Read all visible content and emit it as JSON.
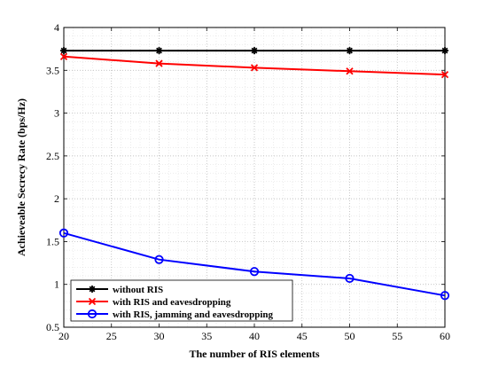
{
  "chart_data": {
    "type": "line",
    "xlabel": "The number of RIS elements",
    "ylabel": "Achieveable Secrecy Rate (bps/Hz)",
    "xlim": [
      20,
      60
    ],
    "ylim": [
      0.5,
      4
    ],
    "x_ticks": [
      "20",
      "25",
      "30",
      "35",
      "40",
      "45",
      "50",
      "55",
      "60"
    ],
    "y_ticks": [
      "0.5",
      "1",
      "1.5",
      "2",
      "2.5",
      "3",
      "3.5",
      "4"
    ],
    "x_tick_values": [
      20,
      25,
      30,
      35,
      40,
      45,
      50,
      55,
      60
    ],
    "y_tick_values": [
      0.5,
      1,
      1.5,
      2,
      2.5,
      3,
      3.5,
      4
    ],
    "grid": true,
    "legend_position": "bottom-left",
    "x": [
      20,
      30,
      40,
      50,
      60
    ],
    "series": [
      {
        "name": "without RIS",
        "values": [
          3.73,
          3.73,
          3.73,
          3.73,
          3.73
        ],
        "color": "#000000",
        "marker": "asterisk"
      },
      {
        "name": "with RIS and eavesdropping",
        "values": [
          3.66,
          3.58,
          3.53,
          3.49,
          3.45
        ],
        "color": "#ff0000",
        "marker": "x"
      },
      {
        "name": "with RIS, jamming and eavesdropping",
        "values": [
          1.6,
          1.29,
          1.15,
          1.07,
          0.87
        ],
        "color": "#0000ff",
        "marker": "circle"
      }
    ]
  }
}
